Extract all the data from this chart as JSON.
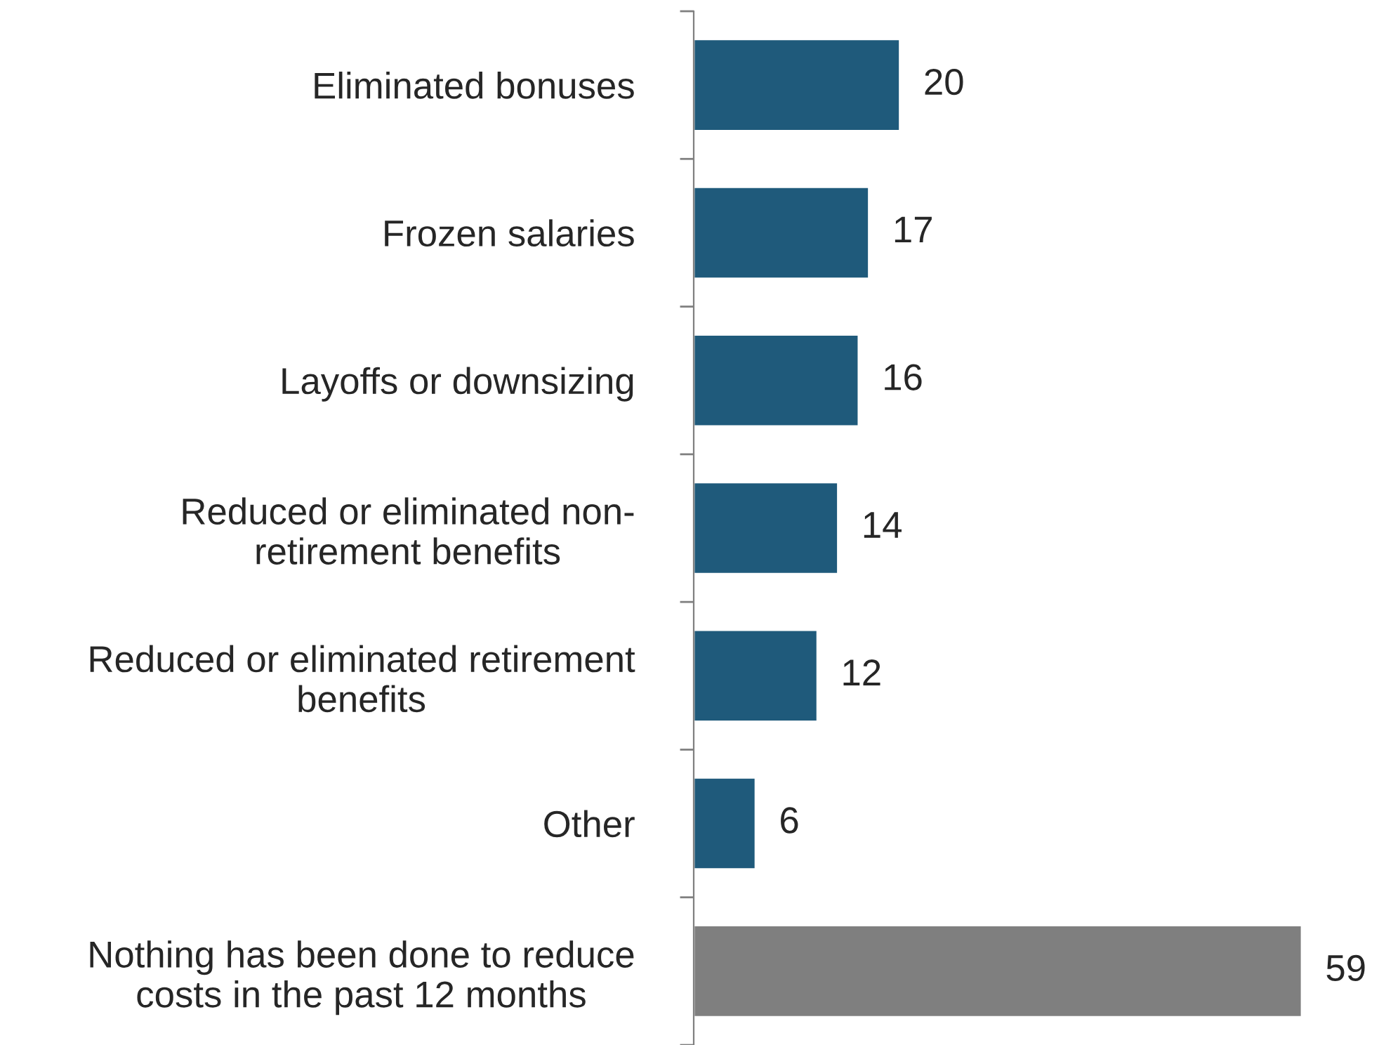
{
  "chart_data": {
    "type": "bar",
    "orientation": "horizontal",
    "categories": [
      "Eliminated bonuses",
      "Frozen salaries",
      "Layoffs or downsizing",
      "Reduced or eliminated non-\nretirement benefits",
      "Reduced or eliminated retirement\nbenefits",
      "Other",
      "Nothing has been done to reduce\ncosts in the past 12 months"
    ],
    "values": [
      20,
      17,
      16,
      14,
      12,
      6,
      59
    ],
    "colors": [
      "#1f5a7b",
      "#1f5a7b",
      "#1f5a7b",
      "#1f5a7b",
      "#1f5a7b",
      "#1f5a7b",
      "#7f7f7f"
    ],
    "data_labels": true,
    "tick_labels": "y",
    "grid": false,
    "legend": false
  }
}
